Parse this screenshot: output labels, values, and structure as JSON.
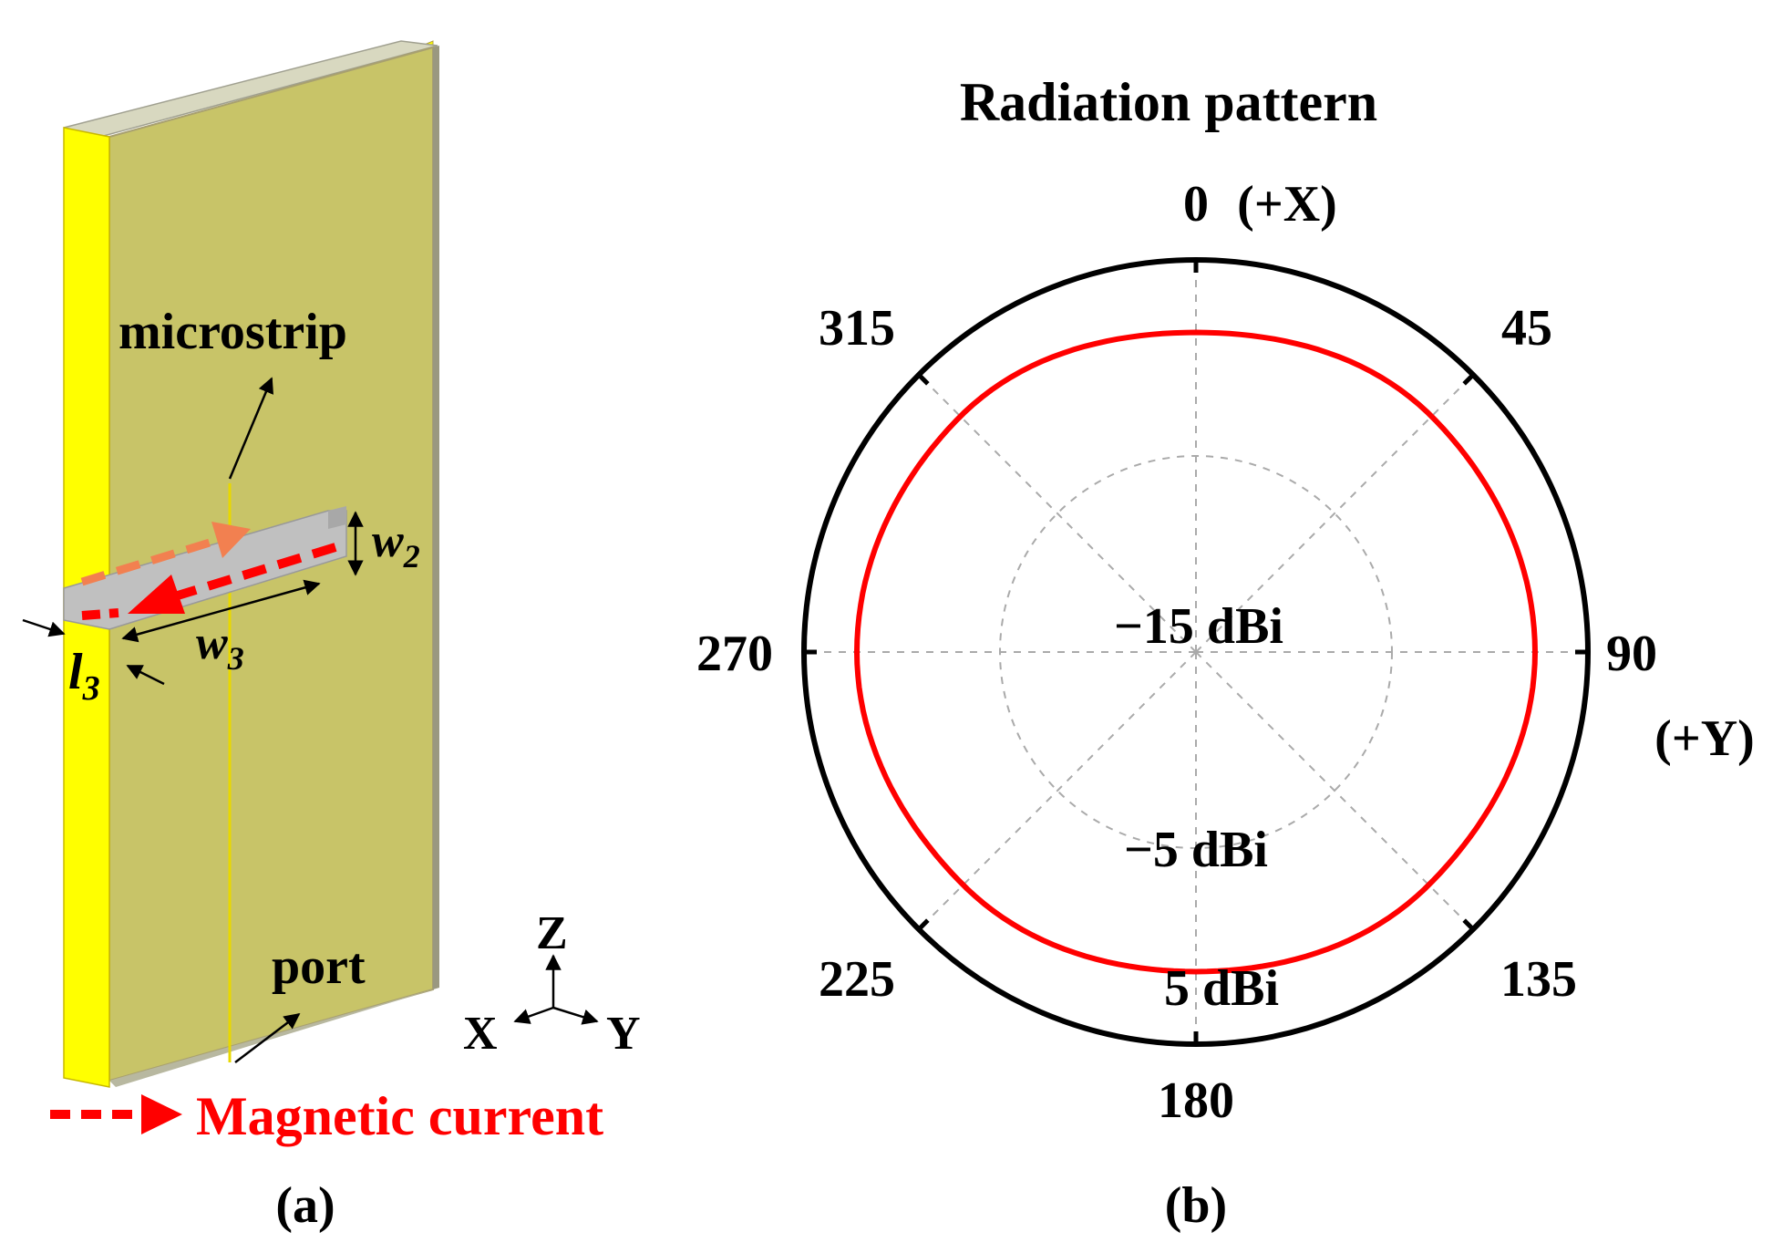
{
  "panel_a": {
    "label": "(a)",
    "microstrip_label": "microstrip",
    "port_label": "port",
    "dim_w2": "w",
    "dim_w2_sub": "2",
    "dim_w3": "w",
    "dim_w3_sub": "3",
    "dim_l3": "l",
    "dim_l3_sub": "3",
    "axis_z": "Z",
    "axis_x": "X",
    "axis_y": "Y",
    "legend_magnetic_current": "Magnetic current",
    "colors": {
      "substrate": "#c8c468",
      "substrate_edge": "#a8a070",
      "metal_side": "#ffff00",
      "slot": "#c0c0c0",
      "magnetic_current": "#ff0000",
      "magnetic_current_faded": "#f28050"
    }
  },
  "panel_b": {
    "label": "(b)",
    "title": "Radiation pattern",
    "top_angle": "0",
    "plus_x": "(+X)",
    "right_angle": "90",
    "plus_y": "(+Y)",
    "ring_labels": [
      "−15 dBi",
      "−5 dBi",
      "5 dBi"
    ],
    "colors": {
      "pattern": "#ff0000",
      "outer_ring": "#000000",
      "grid": "#aaaaaa"
    }
  },
  "chart_data": {
    "type": "polar",
    "title": "Radiation pattern",
    "angle_labels": [
      "0",
      "45",
      "90",
      "135",
      "180",
      "225",
      "270",
      "315"
    ],
    "angles_deg": [
      0,
      45,
      90,
      135,
      180,
      225,
      270,
      315,
      360
    ],
    "radial_ticks_dBi": [
      -15,
      -5,
      5
    ],
    "radial_range_dBi": [
      -15,
      5
    ],
    "series": [
      {
        "values_dBi": [
          1.3,
          2.0,
          2.3,
          1.8,
          1.3,
          1.8,
          2.3,
          2.0,
          1.3
        ]
      }
    ]
  }
}
